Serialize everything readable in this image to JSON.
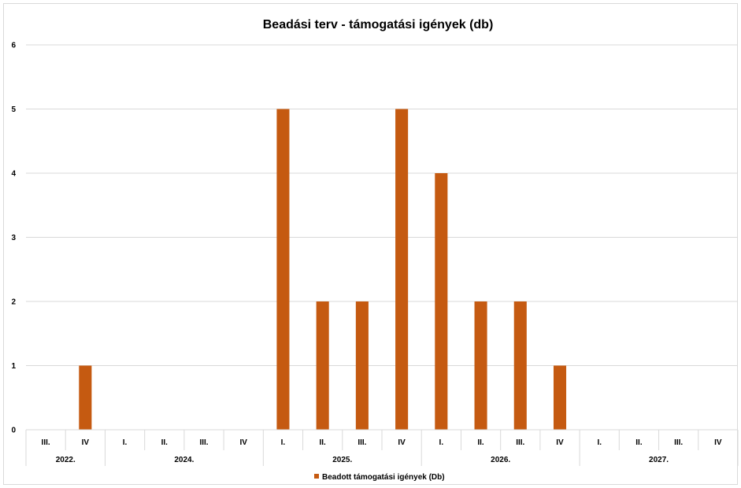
{
  "chart_data": {
    "type": "bar",
    "title": "Beadási terv - támogatási igények (db)",
    "xlabel": "",
    "ylabel": "",
    "ylim": [
      0,
      6
    ],
    "yticks": [
      "0",
      "1",
      "2",
      "3",
      "4",
      "5",
      "6"
    ],
    "grid": true,
    "legend_position": "bottom",
    "bar_color": "#C55A11",
    "year_groups": [
      {
        "year": "2022.",
        "quarters": [
          "III.",
          "IV"
        ]
      },
      {
        "year": "2024.",
        "quarters": [
          "I.",
          "II.",
          "III.",
          "IV"
        ]
      },
      {
        "year": "2025.",
        "quarters": [
          "I.",
          "II.",
          "III.",
          "IV"
        ]
      },
      {
        "year": "2026.",
        "quarters": [
          "I.",
          "II.",
          "III.",
          "IV"
        ]
      },
      {
        "year": "2027.",
        "quarters": [
          "I.",
          "II.",
          "III.",
          "IV"
        ]
      }
    ],
    "series": [
      {
        "name": "Beadott támogatási igények (Db)",
        "values": [
          0,
          1,
          0,
          0,
          0,
          0,
          5,
          2,
          2,
          5,
          4,
          2,
          2,
          1,
          0,
          0,
          0,
          0
        ]
      }
    ]
  }
}
